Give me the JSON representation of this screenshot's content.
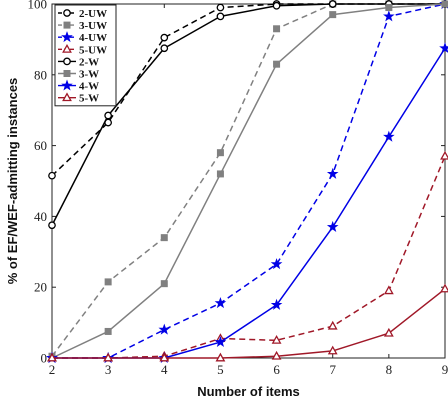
{
  "chart_data": {
    "type": "line",
    "xlabel": "Number of items",
    "ylabel": "% of EF/WEF-admitting instances",
    "x": [
      2,
      3,
      4,
      5,
      6,
      7,
      8,
      9
    ],
    "xlim": [
      2,
      9
    ],
    "ylim": [
      0,
      100
    ],
    "xticks": [
      "2",
      "3",
      "4",
      "5",
      "6",
      "7",
      "8",
      "9"
    ],
    "yticks": [
      "0",
      "20",
      "40",
      "60",
      "80",
      "100"
    ],
    "grid": false,
    "legend_position": "top-left",
    "series": [
      {
        "name": "2-UW",
        "color": "#000000",
        "dash": true,
        "marker": "circle",
        "values": [
          51.5,
          66.5,
          90.5,
          99,
          100,
          100,
          100,
          100
        ]
      },
      {
        "name": "3-UW",
        "color": "#808080",
        "dash": true,
        "marker": "square",
        "values": [
          0.5,
          21.5,
          34,
          58,
          93,
          100,
          100,
          100
        ]
      },
      {
        "name": "4-UW",
        "color": "#0000e6",
        "dash": true,
        "marker": "star",
        "values": [
          0,
          0,
          8,
          15.5,
          26.5,
          52,
          96.5,
          100
        ]
      },
      {
        "name": "5-UW",
        "color": "#a01828",
        "dash": true,
        "marker": "triangle",
        "values": [
          0,
          0,
          0.5,
          5.5,
          5,
          9,
          19,
          57
        ]
      },
      {
        "name": "2-W",
        "color": "#000000",
        "dash": false,
        "marker": "circle",
        "values": [
          37.5,
          68.5,
          87.5,
          96.5,
          99.5,
          100,
          100,
          100
        ]
      },
      {
        "name": "3-W",
        "color": "#808080",
        "dash": false,
        "marker": "square",
        "values": [
          0,
          7.5,
          21,
          52,
          83,
          97,
          99,
          100
        ]
      },
      {
        "name": "4-W",
        "color": "#0000e6",
        "dash": false,
        "marker": "star",
        "values": [
          0,
          0,
          0,
          4.5,
          15,
          37,
          62.5,
          87.5
        ]
      },
      {
        "name": "5-W",
        "color": "#a01828",
        "dash": false,
        "marker": "triangle",
        "values": [
          0,
          0,
          0,
          0,
          0.5,
          2,
          7,
          19.5
        ]
      }
    ]
  }
}
